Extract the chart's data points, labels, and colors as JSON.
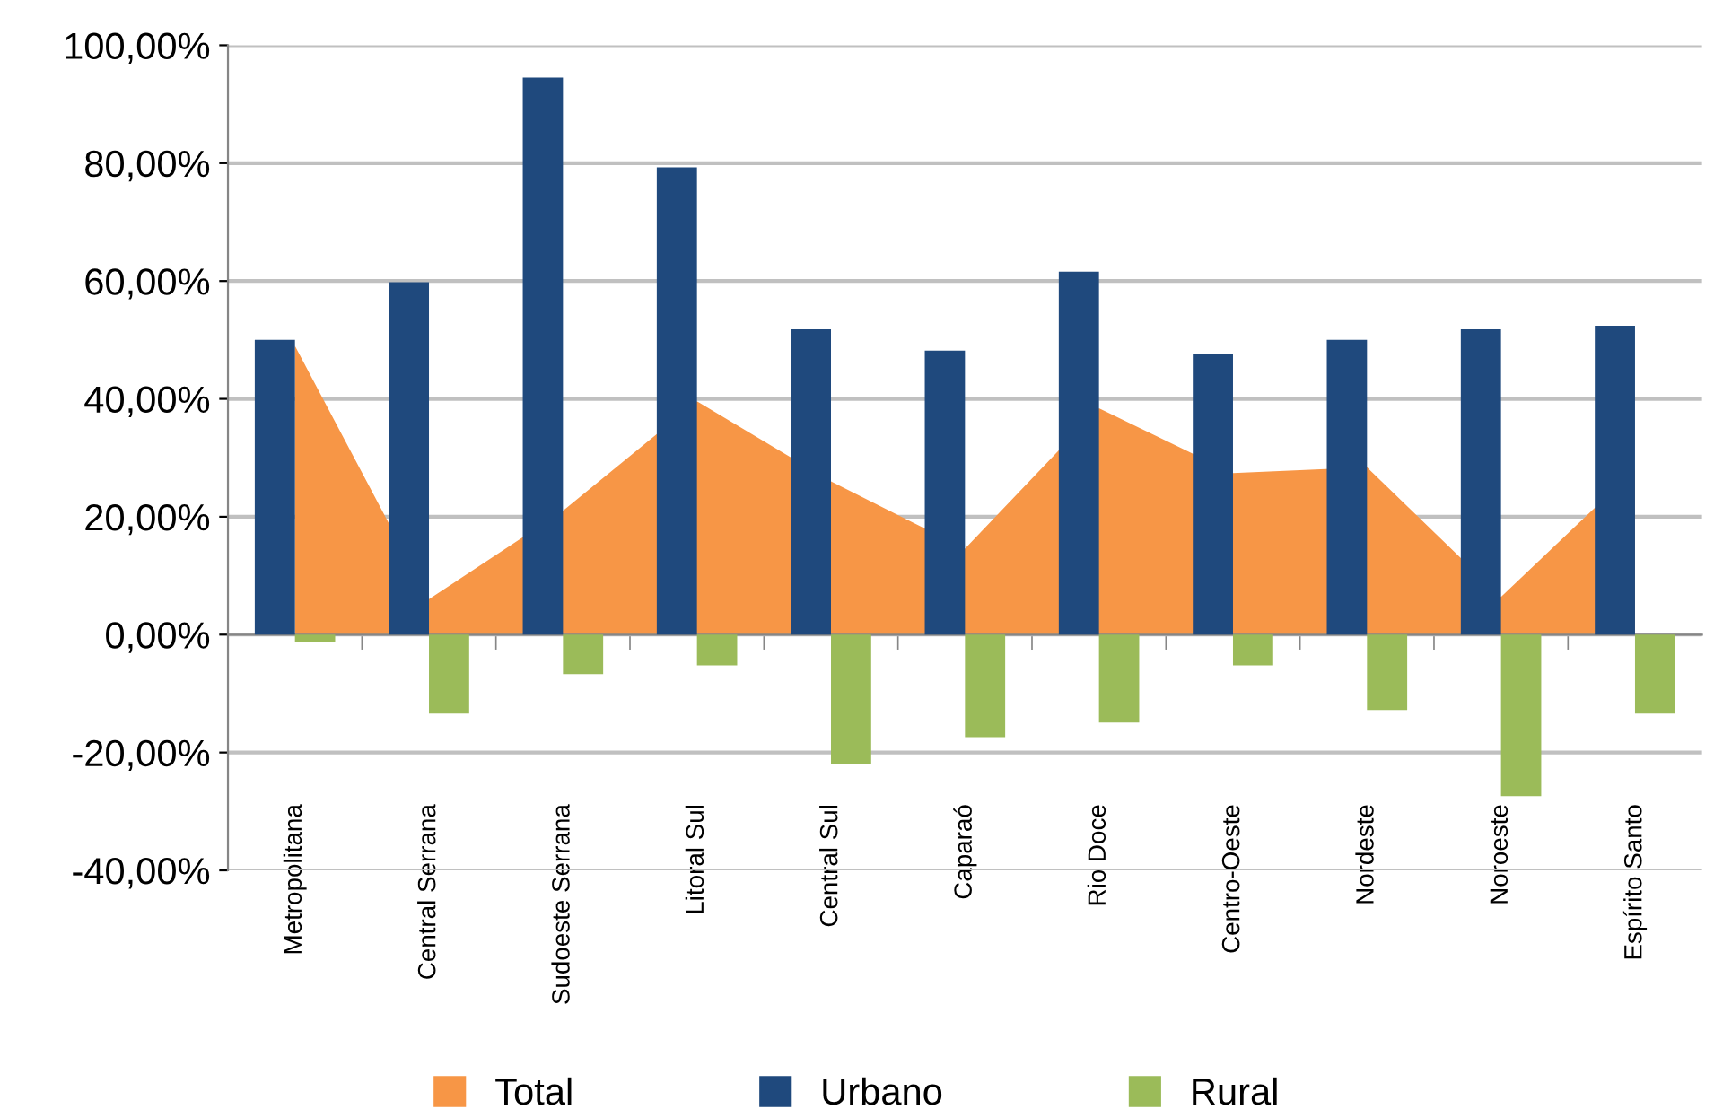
{
  "chart_data": {
    "type": "bar",
    "categories": [
      "Metropolitana",
      "Central Serrana",
      "Sudoeste Serrana",
      "Litoral Sul",
      "Central Sul",
      "Caparaó",
      "Rio Doce",
      "Centro-Oeste",
      "Nordeste",
      "Noroeste",
      "Espírito Santo"
    ],
    "series": [
      {
        "name": "Total",
        "type": "area",
        "color": "#f79646",
        "values": [
          49,
          6,
          21,
          39.6,
          26,
          14.6,
          38.4,
          27.4,
          28.4,
          6.4,
          28
        ]
      },
      {
        "name": "Urbano",
        "color": "#1f497d",
        "values": [
          50,
          59.8,
          94.5,
          79.3,
          51.8,
          48.2,
          61.6,
          47.6,
          50,
          51.8,
          52.4
        ]
      },
      {
        "name": "Rural",
        "color": "#9bbb59",
        "values": [
          -1.2,
          -13.4,
          -6.7,
          -5.2,
          -22,
          -17.4,
          -14.9,
          -5.2,
          -12.8,
          -27.4,
          -13.4
        ]
      }
    ],
    "ylim": [
      -40,
      100
    ],
    "yticks": [
      {
        "value": -40,
        "label": "-40,00%"
      },
      {
        "value": -20,
        "label": "-20,00%"
      },
      {
        "value": 0,
        "label": "0,00%"
      },
      {
        "value": 20,
        "label": "20,00%"
      },
      {
        "value": 40,
        "label": "40,00%"
      },
      {
        "value": 60,
        "label": "60,00%"
      },
      {
        "value": 80,
        "label": "80,00%"
      },
      {
        "value": 100,
        "label": "100,00%"
      }
    ],
    "grid": "y",
    "legend": "bottom"
  }
}
